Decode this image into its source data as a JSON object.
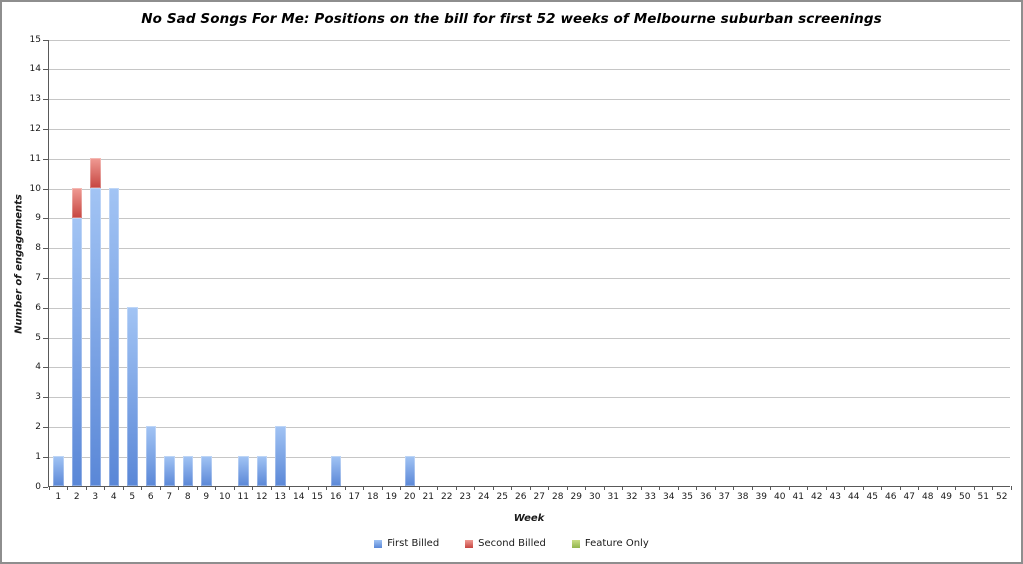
{
  "window": {
    "background": "#ffffff",
    "border_color": "#8e8e8e",
    "gridline_color": "#c6c6c6",
    "axis_color": "#595959",
    "text_color": "#1a1a1a"
  },
  "chart_data": {
    "type": "bar",
    "stacked": true,
    "title": "No Sad Songs For Me: Positions on the bill for first 52 weeks of Melbourne suburban screenings",
    "xlabel": "Week",
    "ylabel": "Number of engagements",
    "categories": [
      "1",
      "2",
      "3",
      "4",
      "5",
      "6",
      "7",
      "8",
      "9",
      "10",
      "11",
      "12",
      "13",
      "14",
      "15",
      "16",
      "17",
      "18",
      "19",
      "20",
      "21",
      "22",
      "23",
      "24",
      "25",
      "26",
      "27",
      "28",
      "29",
      "30",
      "31",
      "32",
      "33",
      "34",
      "35",
      "36",
      "37",
      "38",
      "39",
      "40",
      "41",
      "42",
      "43",
      "44",
      "45",
      "46",
      "47",
      "48",
      "49",
      "50",
      "51",
      "52"
    ],
    "ylim": [
      0,
      15
    ],
    "ytick_step": 1,
    "grid": true,
    "legend_position": "bottom",
    "series": [
      {
        "name": "First Billed",
        "color": "#6d9eeb",
        "color_light": "#a2c4f4",
        "color_dark": "#5a87d7",
        "values": [
          1,
          9,
          10,
          10,
          6,
          2,
          1,
          1,
          1,
          0,
          1,
          1,
          2,
          0,
          0,
          1,
          0,
          0,
          0,
          1,
          0,
          0,
          0,
          0,
          0,
          0,
          0,
          0,
          0,
          0,
          0,
          0,
          0,
          0,
          0,
          0,
          0,
          0,
          0,
          0,
          0,
          0,
          0,
          0,
          0,
          0,
          0,
          0,
          0,
          0,
          0,
          0
        ]
      },
      {
        "name": "Second Billed",
        "color": "#cf4b44",
        "color_light": "#f09b94",
        "color_dark": "#c64540",
        "values": [
          0,
          1,
          1,
          0,
          0,
          0,
          0,
          0,
          0,
          0,
          0,
          0,
          0,
          0,
          0,
          0,
          0,
          0,
          0,
          0,
          0,
          0,
          0,
          0,
          0,
          0,
          0,
          0,
          0,
          0,
          0,
          0,
          0,
          0,
          0,
          0,
          0,
          0,
          0,
          0,
          0,
          0,
          0,
          0,
          0,
          0,
          0,
          0,
          0,
          0,
          0,
          0
        ]
      },
      {
        "name": "Feature Only",
        "color": "#9bbb59",
        "color_light": "#c9de85",
        "color_dark": "#92b64e",
        "values": [
          0,
          0,
          0,
          0,
          0,
          0,
          0,
          0,
          0,
          0,
          0,
          0,
          0,
          0,
          0,
          0,
          0,
          0,
          0,
          0,
          0,
          0,
          0,
          0,
          0,
          0,
          0,
          0,
          0,
          0,
          0,
          0,
          0,
          0,
          0,
          0,
          0,
          0,
          0,
          0,
          0,
          0,
          0,
          0,
          0,
          0,
          0,
          0,
          0,
          0,
          0,
          0
        ]
      }
    ]
  }
}
